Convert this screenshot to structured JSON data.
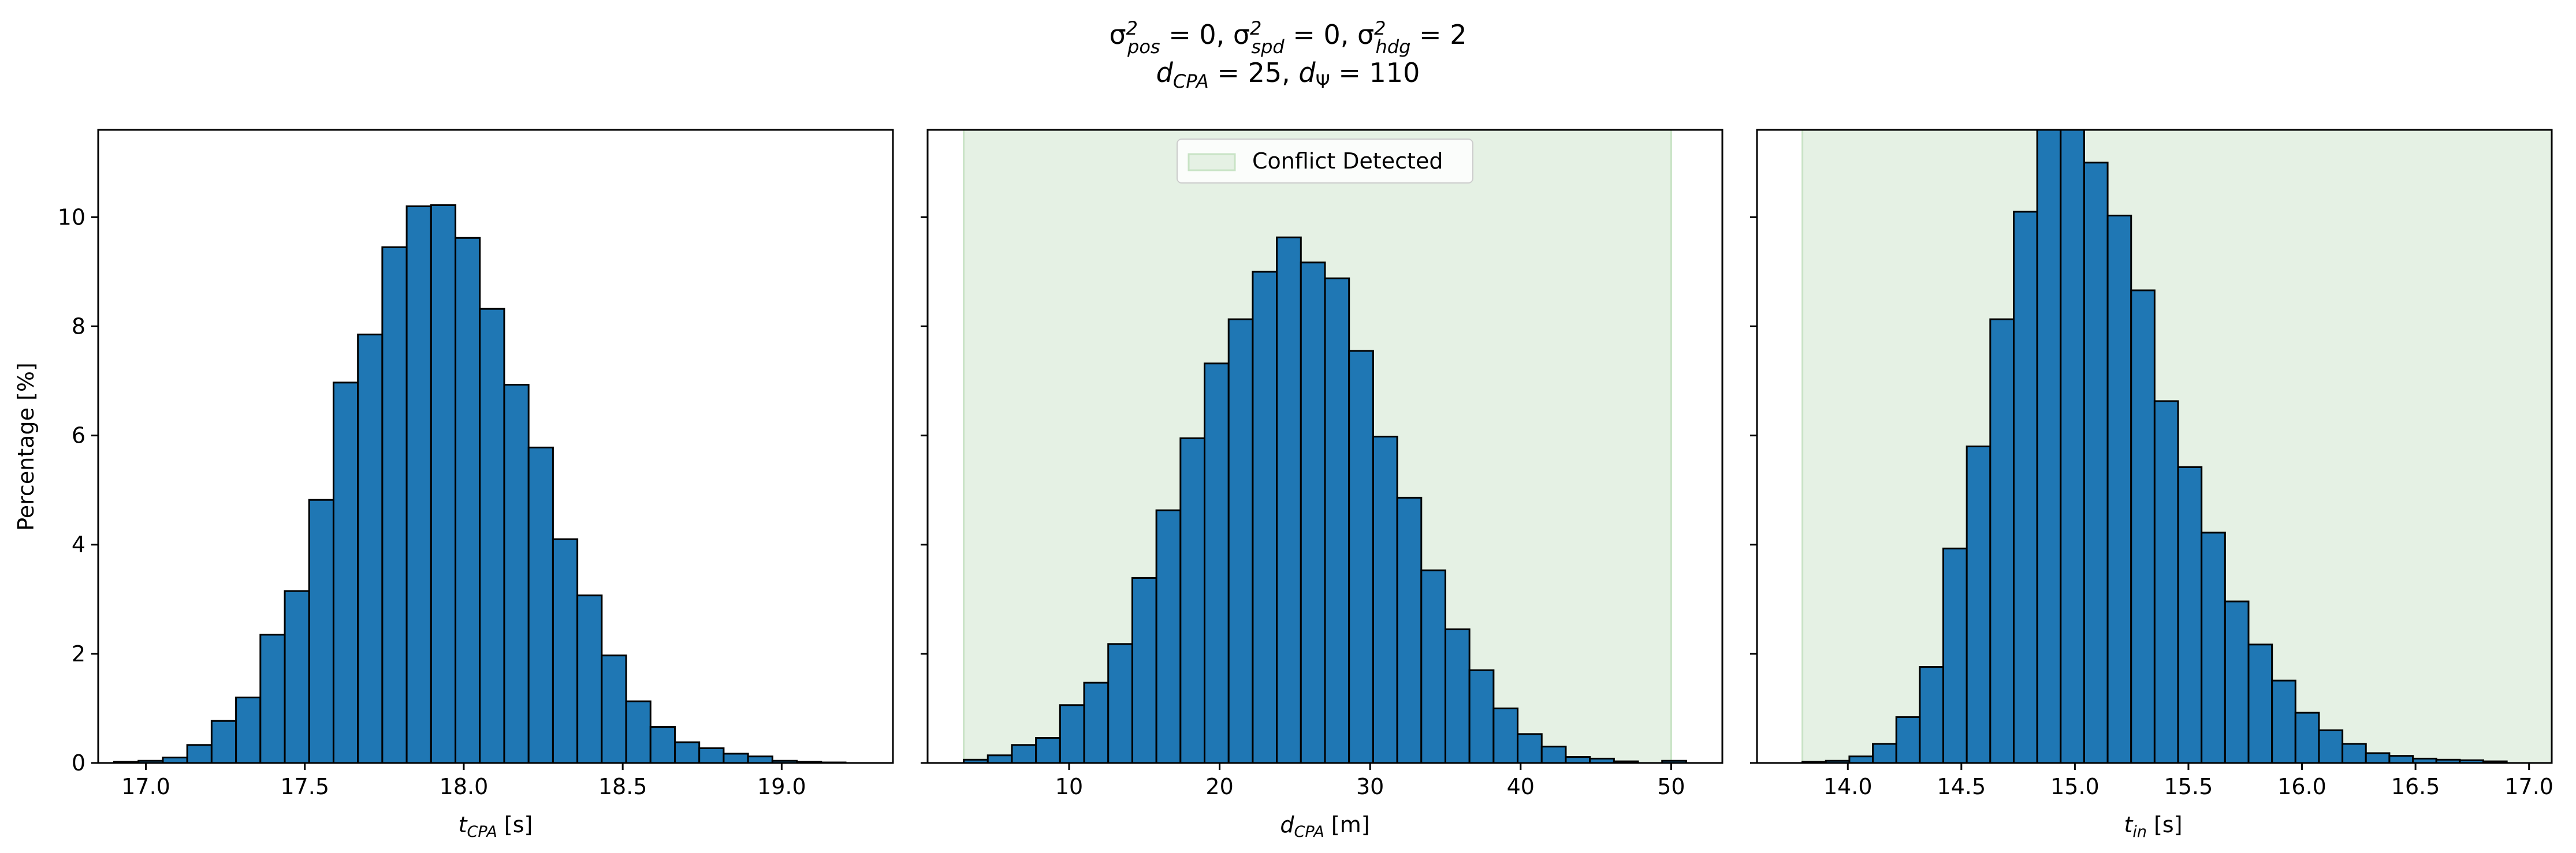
{
  "figure": {
    "title_line1": "σ²pos = 0, σ²spd = 0, σ²hdg = 2",
    "title_line2": "dCPA = 25, dΨ = 110"
  },
  "colors": {
    "bar_fill": "#1f77b4",
    "bar_edge": "#000000",
    "shade": "#e5f1e4",
    "shade_edge": "#c8e3c5"
  },
  "chart_data": [
    {
      "type": "bar",
      "subtype": "histogram",
      "xlabel": "t_CPA [s]",
      "ylabel": "Percentage [%]",
      "xlim": [
        16.85,
        19.35
      ],
      "ylim": [
        0,
        11.6
      ],
      "xticks": [
        17.0,
        17.5,
        18.0,
        18.5,
        19.0
      ],
      "xtick_labels": [
        "17.0",
        "17.5",
        "18.0",
        "18.5",
        "19.0"
      ],
      "yticks": [
        0,
        2,
        4,
        6,
        8,
        10
      ],
      "ytick_labels": [
        "0",
        "2",
        "4",
        "6",
        "8",
        "10"
      ],
      "bin_start": 16.9,
      "bin_width": 0.0767,
      "values": [
        0.02,
        0.04,
        0.1,
        0.33,
        0.77,
        1.2,
        2.35,
        3.15,
        4.82,
        6.97,
        7.85,
        9.45,
        10.2,
        10.22,
        9.62,
        8.32,
        6.93,
        5.78,
        4.1,
        3.07,
        1.97,
        1.13,
        0.66,
        0.38,
        0.27,
        0.17,
        0.12,
        0.04,
        0.02,
        0.01
      ]
    },
    {
      "type": "bar",
      "subtype": "histogram",
      "xlabel": "d_CPA [m]",
      "xlim": [
        0.6,
        53.4
      ],
      "ylim": [
        0,
        11.6
      ],
      "xticks": [
        10,
        20,
        30,
        40,
        50
      ],
      "xtick_labels": [
        "10",
        "20",
        "30",
        "40",
        "50"
      ],
      "yticks": [
        0,
        2,
        4,
        6,
        8,
        10
      ],
      "shaded_range": [
        3,
        50
      ],
      "legend": {
        "label": "Conflict Detected",
        "position": "upper center"
      },
      "bin_start": 3.0,
      "bin_width": 1.6,
      "values": [
        0.06,
        0.14,
        0.33,
        0.46,
        1.06,
        1.47,
        2.18,
        3.39,
        4.63,
        5.95,
        7.32,
        8.13,
        9.0,
        9.63,
        9.17,
        8.88,
        7.55,
        5.98,
        4.86,
        3.53,
        2.45,
        1.7,
        1.0,
        0.53,
        0.3,
        0.11,
        0.08,
        0.03,
        0.0,
        0.04
      ]
    },
    {
      "type": "bar",
      "subtype": "histogram",
      "xlabel": "t_in [s]",
      "xlim": [
        13.6,
        17.1
      ],
      "ylim": [
        0,
        11.6
      ],
      "xticks": [
        14.0,
        14.5,
        15.0,
        15.5,
        16.0,
        16.5,
        17.0
      ],
      "xtick_labels": [
        "14.0",
        "14.5",
        "15.0",
        "15.5",
        "16.0",
        "16.5",
        "17.0"
      ],
      "yticks": [
        0,
        2,
        4,
        6,
        8,
        10
      ],
      "shaded_range": [
        13.8,
        17.1
      ],
      "bin_start": 13.8,
      "bin_width": 0.1034,
      "values": [
        0.02,
        0.04,
        0.12,
        0.35,
        0.84,
        1.76,
        3.93,
        5.8,
        8.13,
        10.1,
        11.75,
        11.6,
        11.0,
        10.03,
        8.66,
        6.63,
        5.42,
        4.22,
        2.96,
        2.17,
        1.51,
        0.92,
        0.6,
        0.35,
        0.18,
        0.13,
        0.08,
        0.06,
        0.05,
        0.03
      ]
    }
  ]
}
